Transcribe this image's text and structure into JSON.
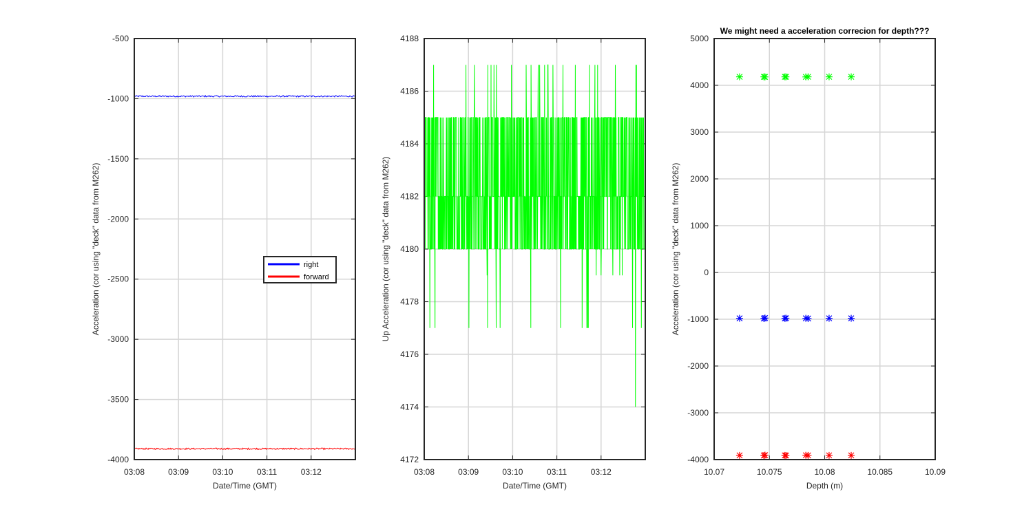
{
  "chart_data": [
    {
      "type": "line",
      "title": "",
      "xlabel": "Date/Time (GMT)",
      "ylabel": "Acceleration (cor using \"deck\" data from M262)",
      "x_ticks": [
        "03:08",
        "03:09",
        "03:10",
        "03:11",
        "03:12"
      ],
      "x_tick_values": [
        0,
        1,
        2,
        3,
        4
      ],
      "xlim": [
        0,
        5
      ],
      "xunit": "minutes after 03:08 GMT",
      "ylim": [
        -4000,
        -500
      ],
      "y_ticks": [
        -500,
        -1000,
        -1500,
        -2000,
        -2500,
        -3000,
        -3500,
        -4000
      ],
      "grid": true,
      "legend": {
        "position": "center-right"
      },
      "series": [
        {
          "name": "right",
          "color": "#0000ff",
          "level": -980,
          "noise": 6
        },
        {
          "name": "forward",
          "color": "#ff0000",
          "level": -3910,
          "noise": 6
        }
      ]
    },
    {
      "type": "line",
      "title": "",
      "xlabel": "Date/Time (GMT)",
      "ylabel": "Up Acceleration (cor using \"deck\" data from M262)",
      "x_ticks": [
        "03:08",
        "03:09",
        "03:10",
        "03:11",
        "03:12"
      ],
      "x_tick_values": [
        0,
        1,
        2,
        3,
        4
      ],
      "xlim": [
        0,
        5
      ],
      "ylim": [
        4172,
        4188
      ],
      "y_ticks": [
        4188,
        4186,
        4184,
        4182,
        4180,
        4178,
        4176,
        4174,
        4172
      ],
      "grid": true,
      "series": [
        {
          "color": "#00ff00",
          "levels": [
            4180,
            4182,
            4185
          ],
          "min": 4174,
          "max": 4187
        }
      ]
    },
    {
      "type": "scatter",
      "title": "We might need a acceleration correcion for depth???",
      "xlabel": "Depth (m)",
      "ylabel": "Acceleration (cor using \"deck\" data from M262)",
      "x_ticks": [
        "10.07",
        "10.075",
        "10.08",
        "10.085",
        "10.09"
      ],
      "x_tick_values": [
        10.07,
        10.075,
        10.08,
        10.085,
        10.09
      ],
      "xlim": [
        10.07,
        10.09
      ],
      "ylim": [
        -4000,
        5000
      ],
      "y_ticks": [
        5000,
        4000,
        3000,
        2000,
        1000,
        0,
        -1000,
        -2000,
        -3000,
        -4000
      ],
      "grid": true,
      "x": [
        10.0723,
        10.0745,
        10.0746,
        10.0764,
        10.0765,
        10.0783,
        10.0785,
        10.0804,
        10.0824
      ],
      "series": [
        {
          "color": "#00ff00",
          "y": [
            4182,
            4182,
            4180,
            4182,
            4182,
            4180,
            4182,
            4182,
            4182
          ]
        },
        {
          "color": "#0000ff",
          "y": [
            -980,
            -985,
            -975,
            -982,
            -978,
            -980,
            -985,
            -980,
            -980
          ]
        },
        {
          "color": "#ff0000",
          "y": [
            -3910,
            -3912,
            -3905,
            -3910,
            -3912,
            -3908,
            -3910,
            -3910,
            -3910
          ]
        }
      ]
    }
  ]
}
